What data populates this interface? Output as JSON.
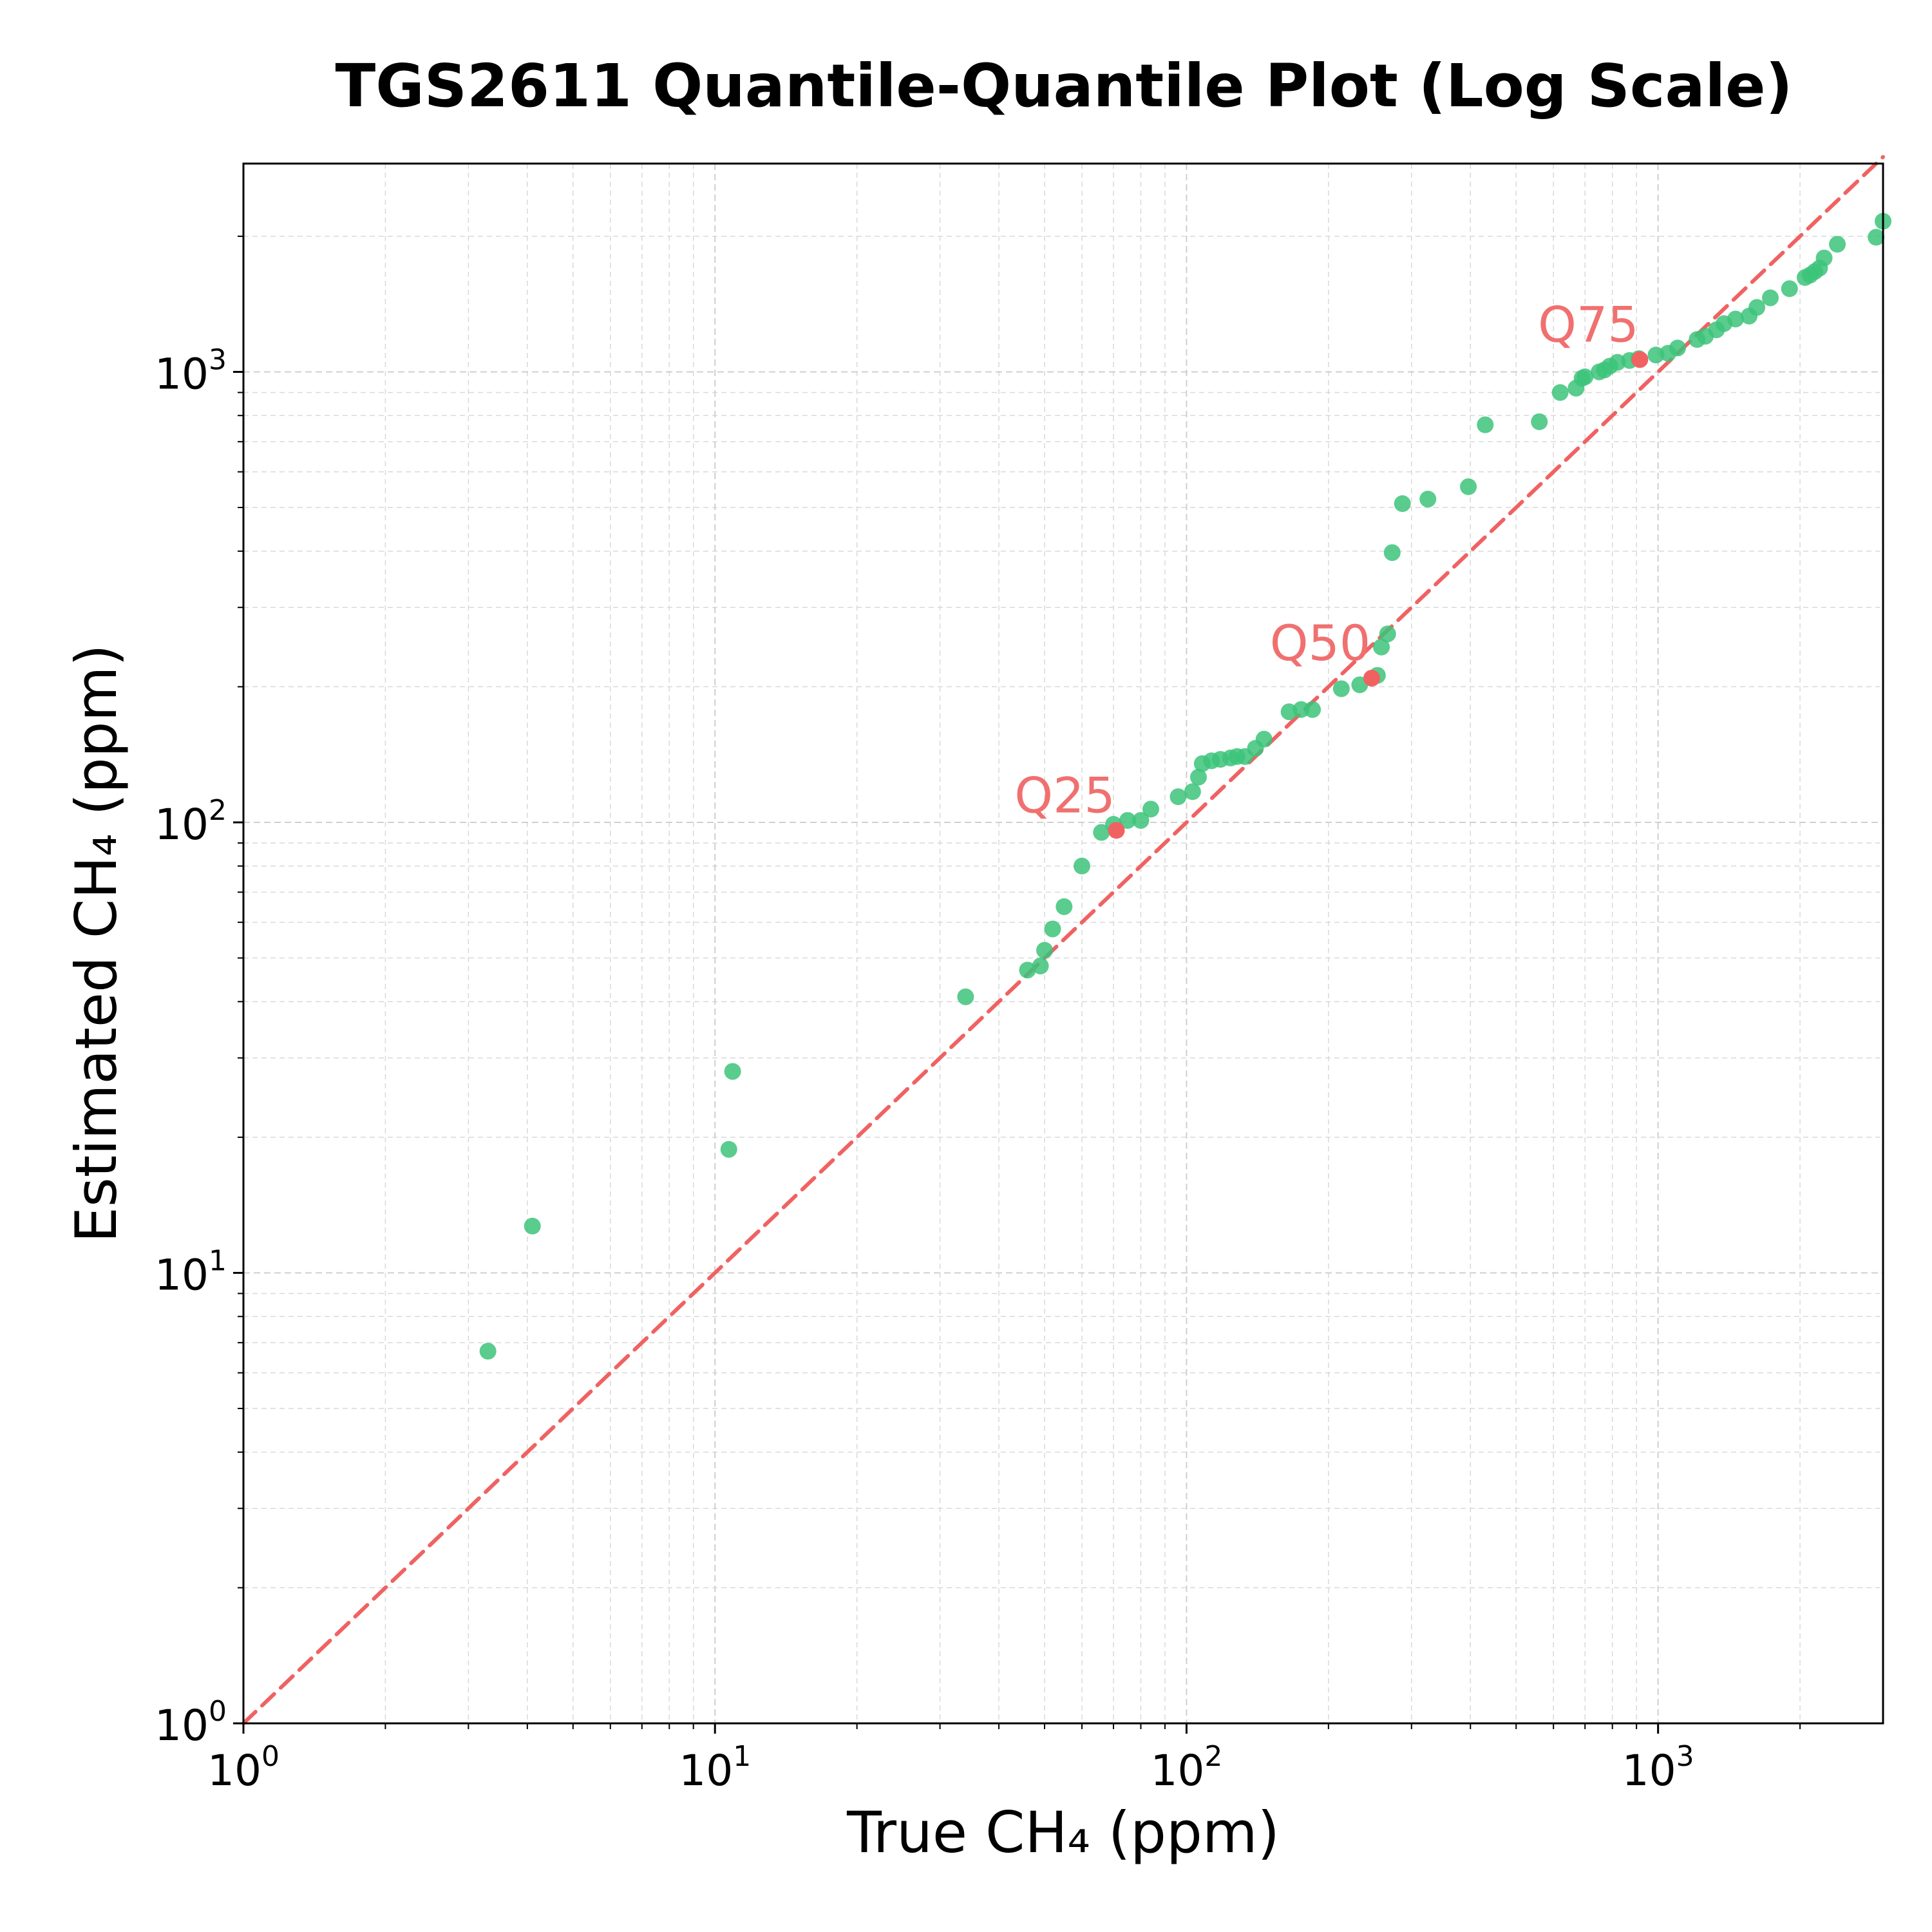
{
  "chart_data": {
    "type": "scatter",
    "title": "TGS2611 Quantile-Quantile Plot (Log Scale)",
    "xlabel": "True CH₄ (ppm)",
    "ylabel": "Estimated CH₄ (ppm)",
    "xscale": "log",
    "yscale": "log",
    "xlim": [
      1,
      3000
    ],
    "ylim": [
      1,
      2900
    ],
    "grid": true,
    "colors": {
      "points": "#3cc37a",
      "quantiles": "#f06262",
      "reference_line": "#f06262",
      "grid": "#d9d9d9"
    },
    "x_ticks": [
      {
        "base": "10",
        "exp": "0",
        "value": 1
      },
      {
        "base": "10",
        "exp": "1",
        "value": 10
      },
      {
        "base": "10",
        "exp": "2",
        "value": 100
      },
      {
        "base": "10",
        "exp": "3",
        "value": 1000
      }
    ],
    "y_ticks": [
      {
        "base": "10",
        "exp": "0",
        "value": 1
      },
      {
        "base": "10",
        "exp": "1",
        "value": 10
      },
      {
        "base": "10",
        "exp": "2",
        "value": 100
      },
      {
        "base": "10",
        "exp": "3",
        "value": 1000
      }
    ],
    "reference_line": {
      "style": "dashed",
      "from": [
        1,
        1
      ],
      "to": [
        3000,
        3000
      ]
    },
    "points": [
      [
        3.3,
        6.7
      ],
      [
        4.1,
        12.7
      ],
      [
        10.7,
        18.8
      ],
      [
        10.9,
        28
      ],
      [
        34,
        41
      ],
      [
        46,
        47
      ],
      [
        49,
        48
      ],
      [
        50,
        52
      ],
      [
        52,
        58
      ],
      [
        55,
        65
      ],
      [
        60,
        80
      ],
      [
        66,
        95
      ],
      [
        70,
        99
      ],
      [
        75,
        101
      ],
      [
        80,
        101
      ],
      [
        84,
        107
      ],
      [
        96,
        114
      ],
      [
        103,
        117
      ],
      [
        106,
        126
      ],
      [
        108,
        135
      ],
      [
        113,
        137
      ],
      [
        118,
        138
      ],
      [
        124,
        139
      ],
      [
        128,
        140
      ],
      [
        133,
        140
      ],
      [
        140,
        146
      ],
      [
        146,
        153
      ],
      [
        165,
        176
      ],
      [
        175,
        178
      ],
      [
        185,
        178
      ],
      [
        213,
        198
      ],
      [
        233,
        202
      ],
      [
        254,
        212
      ],
      [
        259,
        245
      ],
      [
        267,
        262
      ],
      [
        273,
        397
      ],
      [
        287,
        510
      ],
      [
        325,
        522
      ],
      [
        396,
        556
      ],
      [
        430,
        763
      ],
      [
        560,
        775
      ],
      [
        620,
        900
      ],
      [
        670,
        920
      ],
      [
        690,
        968
      ],
      [
        700,
        975
      ],
      [
        750,
        1000
      ],
      [
        770,
        1010
      ],
      [
        790,
        1030
      ],
      [
        820,
        1050
      ],
      [
        870,
        1060
      ],
      [
        910,
        1070
      ],
      [
        990,
        1090
      ],
      [
        1050,
        1100
      ],
      [
        1100,
        1130
      ],
      [
        1210,
        1180
      ],
      [
        1260,
        1200
      ],
      [
        1330,
        1240
      ],
      [
        1380,
        1280
      ],
      [
        1460,
        1310
      ],
      [
        1560,
        1330
      ],
      [
        1620,
        1390
      ],
      [
        1730,
        1460
      ],
      [
        1900,
        1530
      ],
      [
        2050,
        1620
      ],
      [
        2100,
        1640
      ],
      [
        2150,
        1670
      ],
      [
        2200,
        1700
      ],
      [
        2250,
        1790
      ],
      [
        2400,
        1920
      ],
      [
        2900,
        1990
      ],
      [
        3000,
        2160
      ]
    ],
    "quantile_markers": [
      {
        "label": "Q25",
        "x": 71,
        "y": 96
      },
      {
        "label": "Q50",
        "x": 247,
        "y": 209
      },
      {
        "label": "Q75",
        "x": 915,
        "y": 1065
      }
    ]
  }
}
